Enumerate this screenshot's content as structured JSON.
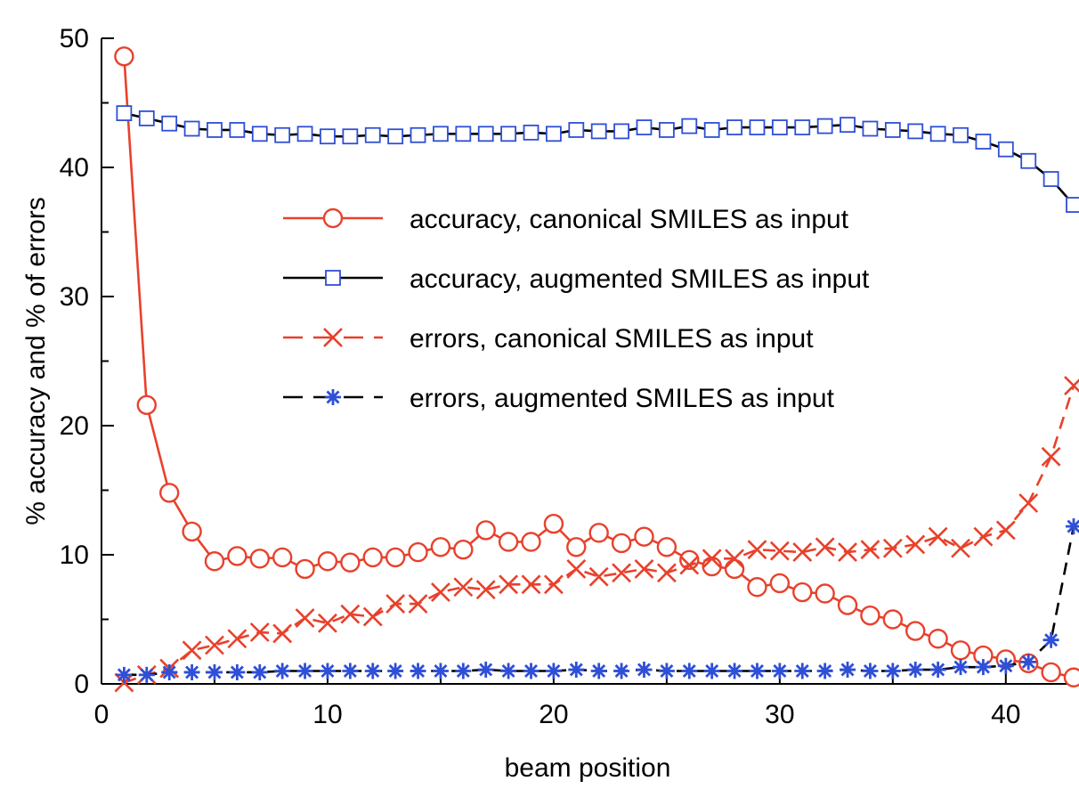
{
  "chart_data": {
    "type": "line",
    "xlabel": "beam position",
    "ylabel": "% accuracy and % of errors",
    "xlim": [
      0,
      43
    ],
    "ylim": [
      0,
      50
    ],
    "xticks": [
      0,
      10,
      20,
      30,
      40
    ],
    "xticks_labels": [
      "0",
      "10",
      "20",
      "30",
      "40"
    ],
    "yticks": [
      0,
      10,
      20,
      30,
      40,
      50
    ],
    "yticks_labels": [
      "0",
      "10",
      "20",
      "30",
      "40",
      "50"
    ],
    "grid": false,
    "legend_position": "center-right",
    "x": [
      1,
      2,
      3,
      4,
      5,
      6,
      7,
      8,
      9,
      10,
      11,
      12,
      13,
      14,
      15,
      16,
      17,
      18,
      19,
      20,
      21,
      22,
      23,
      24,
      25,
      26,
      27,
      28,
      29,
      30,
      31,
      32,
      33,
      34,
      35,
      36,
      37,
      38,
      39,
      40,
      41,
      42,
      43
    ],
    "series": [
      {
        "name": "accuracy, canonical SMILES as input",
        "color": "#e8412c",
        "dash": "solid",
        "marker": "circle",
        "values": [
          48.6,
          21.6,
          14.8,
          11.8,
          9.5,
          9.9,
          9.7,
          9.8,
          8.9,
          9.5,
          9.4,
          9.8,
          9.8,
          10.2,
          10.6,
          10.4,
          11.9,
          11.0,
          11.0,
          12.4,
          10.6,
          11.7,
          10.9,
          11.4,
          10.6,
          9.6,
          9.1,
          8.9,
          7.5,
          7.8,
          7.1,
          7.0,
          6.1,
          5.3,
          5.0,
          4.1,
          3.5,
          2.6,
          2.2,
          1.9,
          1.6,
          0.9,
          0.5
        ]
      },
      {
        "name": "accuracy, augmented SMILES as input",
        "color": "#000000",
        "markerColor": "#2f4fd6",
        "dash": "solid",
        "marker": "square",
        "values": [
          44.2,
          43.8,
          43.4,
          43.0,
          42.9,
          42.9,
          42.6,
          42.5,
          42.6,
          42.4,
          42.4,
          42.5,
          42.4,
          42.5,
          42.6,
          42.6,
          42.6,
          42.6,
          42.7,
          42.6,
          42.9,
          42.8,
          42.8,
          43.1,
          42.9,
          43.2,
          42.9,
          43.1,
          43.1,
          43.1,
          43.1,
          43.2,
          43.3,
          43.0,
          42.9,
          42.8,
          42.6,
          42.5,
          42.0,
          41.4,
          40.5,
          39.1,
          37.1
        ]
      },
      {
        "name": "errors, canonical SMILES as input",
        "color": "#e8412c",
        "dash": "dashed",
        "marker": "x",
        "values": [
          0.1,
          0.7,
          1.2,
          2.6,
          3.0,
          3.5,
          4.0,
          3.9,
          5.1,
          4.7,
          5.4,
          5.2,
          6.2,
          6.2,
          7.1,
          7.5,
          7.3,
          7.7,
          7.7,
          7.7,
          8.9,
          8.3,
          8.6,
          8.9,
          8.6,
          9.2,
          9.7,
          9.7,
          10.4,
          10.3,
          10.2,
          10.6,
          10.2,
          10.4,
          10.5,
          10.8,
          11.4,
          10.5,
          11.4,
          11.9,
          14.0,
          17.6,
          23.1
        ]
      },
      {
        "name": "errors, augmented SMILES as input",
        "color": "#000000",
        "markerColor": "#2f4fd6",
        "dash": "dashed",
        "marker": "asterisk",
        "values": [
          0.7,
          0.7,
          0.9,
          0.9,
          0.9,
          0.9,
          0.9,
          1.0,
          1.0,
          1.0,
          1.0,
          1.0,
          1.0,
          1.0,
          1.0,
          1.0,
          1.1,
          1.0,
          1.0,
          1.0,
          1.1,
          1.0,
          1.0,
          1.1,
          1.0,
          1.0,
          1.0,
          1.0,
          1.0,
          1.0,
          1.0,
          1.0,
          1.1,
          1.0,
          1.0,
          1.1,
          1.1,
          1.3,
          1.3,
          1.4,
          1.7,
          3.4,
          12.2
        ]
      }
    ]
  }
}
